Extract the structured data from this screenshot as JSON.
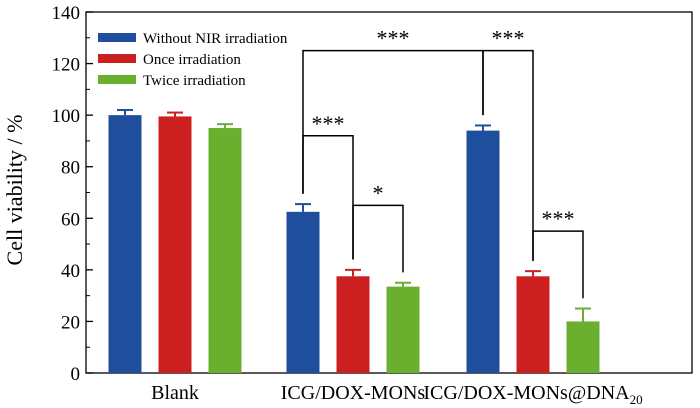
{
  "chart_data": {
    "type": "bar",
    "title": "",
    "xlabel": "",
    "ylabel": "Cell viability / %",
    "ylim": [
      0,
      140
    ],
    "yticks": [
      0,
      20,
      40,
      60,
      80,
      100,
      120,
      140
    ],
    "grid": false,
    "legend_position": "top-left",
    "categories": [
      {
        "label": "Blank",
        "sub": ""
      },
      {
        "label": "ICG/DOX-MONs",
        "sub": ""
      },
      {
        "label": "ICG/DOX-MONs@DNA",
        "sub": "20"
      }
    ],
    "series": [
      {
        "name": "Without NIR irradiation",
        "color": "#1f4e9c",
        "values": [
          100,
          62.5,
          94
        ],
        "errors": [
          2,
          3,
          2
        ]
      },
      {
        "name": "Once irradiation",
        "color": "#cc1f1f",
        "values": [
          99.5,
          37.5,
          37.5
        ],
        "errors": [
          1.5,
          2.5,
          2
        ]
      },
      {
        "name": "Twice irradiation",
        "color": "#6ab02e",
        "values": [
          95,
          33.5,
          20
        ],
        "errors": [
          1.5,
          1.5,
          5
        ]
      }
    ],
    "significance": [
      {
        "from": [
          1,
          0
        ],
        "to": [
          1,
          1
        ],
        "y": 92,
        "label": "***"
      },
      {
        "from": [
          1,
          1
        ],
        "to": [
          1,
          2
        ],
        "y": 65,
        "label": "*"
      },
      {
        "from": [
          1,
          0
        ],
        "to": [
          2,
          0
        ],
        "y": 125,
        "label": "***"
      },
      {
        "from": [
          2,
          0
        ],
        "to": [
          2,
          1
        ],
        "y": 125,
        "label": "***"
      },
      {
        "from": [
          2,
          1
        ],
        "to": [
          2,
          2
        ],
        "y": 55,
        "label": "***"
      }
    ]
  }
}
